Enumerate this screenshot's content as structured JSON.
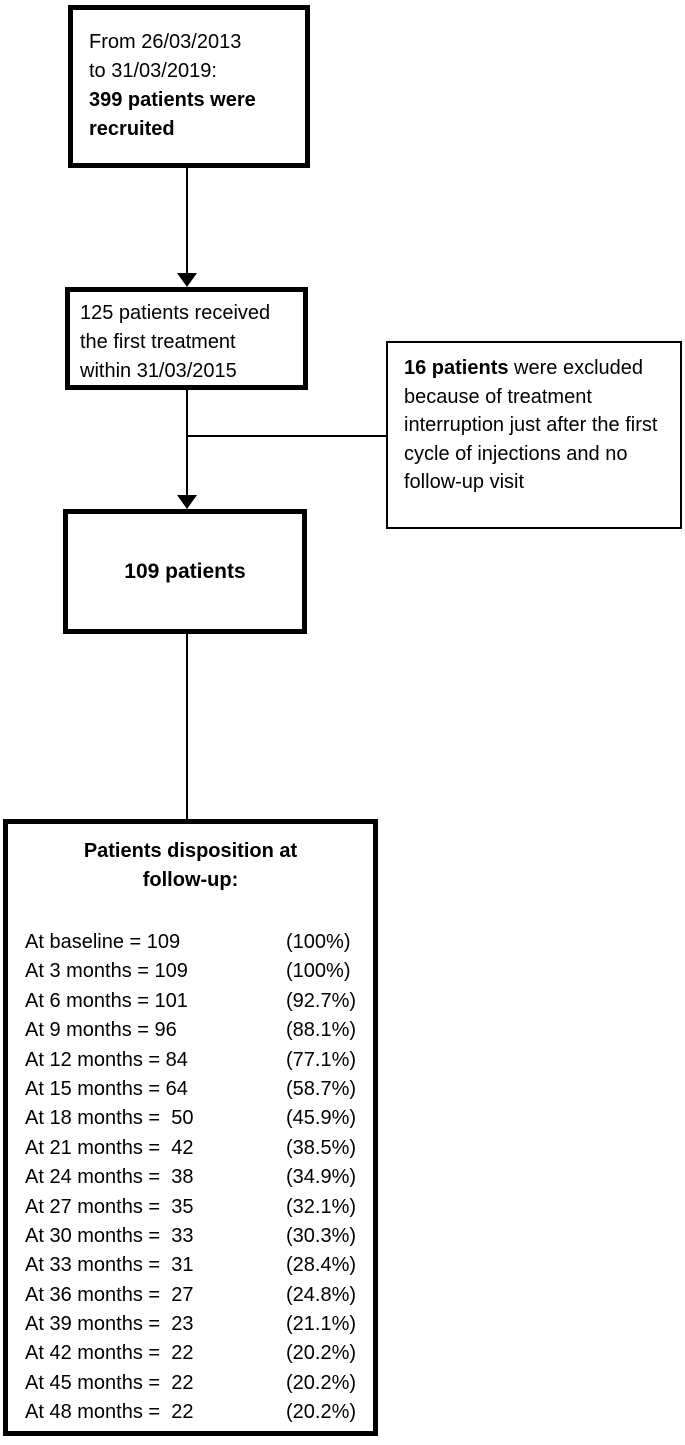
{
  "colors": {
    "line": "#000000",
    "box_border": "#000000",
    "background": "#ffffff",
    "text": "#000000"
  },
  "boxes": {
    "recruited": {
      "lines": [
        "From 26/03/2013",
        "to 31/03/2019:"
      ],
      "bold_lines": [
        "399 patients were",
        "recruited"
      ]
    },
    "first_treatment": {
      "lines": [
        "125 patients received",
        "the first treatment",
        "within 31/03/2015"
      ]
    },
    "excluded": {
      "bold": "16 patients",
      "rest": " were excluded because of treatment interruption just after the first cycle of injections and no follow-up visit"
    },
    "cohort": {
      "label": "109 patients"
    },
    "disposition": {
      "title_line1": "Patients disposition at",
      "title_line2": "follow-up:",
      "rows": [
        {
          "label": "At baseline = 109",
          "pct": "(100%)"
        },
        {
          "label": "At 3 months = 109",
          "pct": "(100%)"
        },
        {
          "label": "At 6 months = 101",
          "pct": "(92.7%)"
        },
        {
          "label": "At 9 months = 96",
          "pct": "(88.1%)"
        },
        {
          "label": "At 12 months = 84",
          "pct": "(77.1%)"
        },
        {
          "label": "At 15 months = 64",
          "pct": "(58.7%)"
        },
        {
          "label": "At 18 months =  50",
          "pct": "(45.9%)"
        },
        {
          "label": "At 21 months =  42",
          "pct": "(38.5%)"
        },
        {
          "label": "At 24 months =  38",
          "pct": "(34.9%)"
        },
        {
          "label": "At 27 months =  35",
          "pct": "(32.1%)"
        },
        {
          "label": "At 30 months =  33",
          "pct": "(30.3%)"
        },
        {
          "label": "At 33 months =  31",
          "pct": "(28.4%)"
        },
        {
          "label": "At 36 months =  27",
          "pct": "(24.8%)"
        },
        {
          "label": "At 39 months =  23",
          "pct": "(21.1%)"
        },
        {
          "label": "At 42 months =  22",
          "pct": "(20.2%)"
        },
        {
          "label": "At 45 months =  22",
          "pct": "(20.2%)"
        },
        {
          "label": "At 48 months =  22",
          "pct": "(20.2%)"
        }
      ]
    }
  }
}
